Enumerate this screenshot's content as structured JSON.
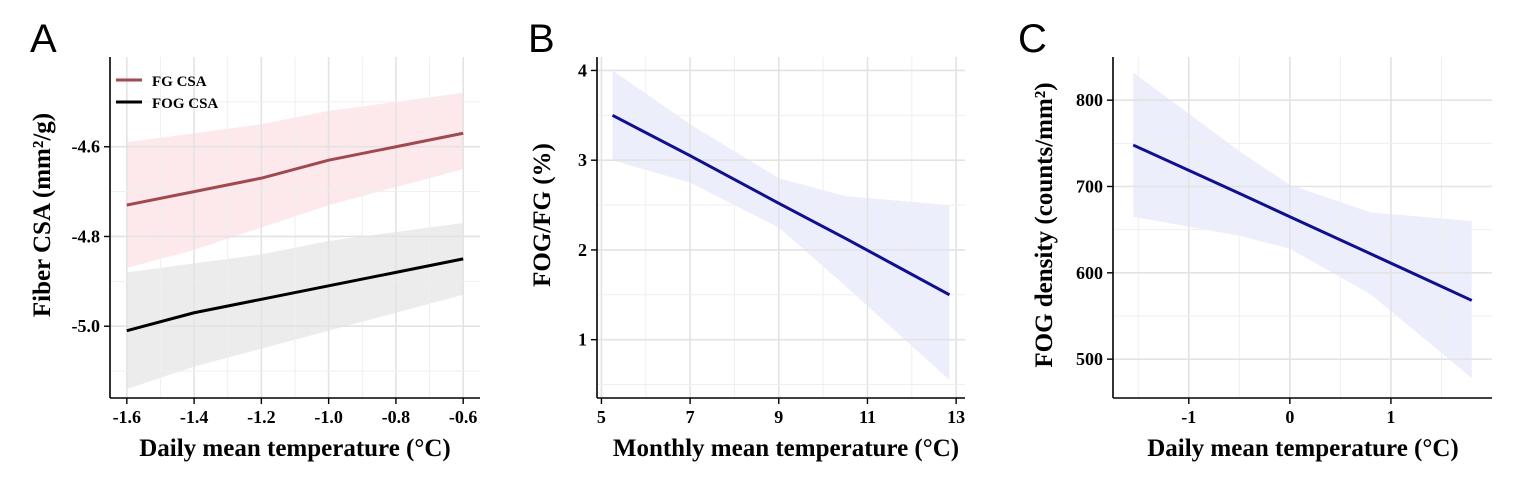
{
  "chart_data": [
    {
      "panel": "A",
      "type": "line",
      "xlabel": "Daily mean temperature (°C)",
      "ylabel": "Fiber CSA (mm²/g)",
      "xlim": [
        -1.65,
        -0.55
      ],
      "ylim": [
        -5.16,
        -4.4
      ],
      "xticks": [
        -1.6,
        -1.4,
        -1.2,
        -1.0,
        -0.8,
        -0.6
      ],
      "xtick_labels": [
        "-1.6",
        "-1.4",
        "-1.2",
        "-1.0",
        "-0.8",
        "-0.6"
      ],
      "yticks": [
        -5.0,
        -4.8,
        -4.6
      ],
      "ytick_labels": [
        "-5.0",
        "-4.8",
        "-4.6"
      ],
      "grid": true,
      "legend": "top-left",
      "series": [
        {
          "name": "FG CSA",
          "color": "#9e4a4f",
          "band_color": "#fde8ec",
          "x": [
            -1.6,
            -1.4,
            -1.2,
            -1.0,
            -0.8,
            -0.6
          ],
          "y": [
            -4.73,
            -4.7,
            -4.67,
            -4.63,
            -4.6,
            -4.57
          ],
          "lower": [
            -4.87,
            -4.83,
            -4.78,
            -4.73,
            -4.69,
            -4.65
          ],
          "upper": [
            -4.59,
            -4.57,
            -4.55,
            -4.52,
            -4.5,
            -4.48
          ]
        },
        {
          "name": "FOG CSA",
          "color": "#000000",
          "band_color": "#ececec",
          "x": [
            -1.6,
            -1.4,
            -1.2,
            -1.0,
            -0.8,
            -0.6
          ],
          "y": [
            -5.01,
            -4.97,
            -4.94,
            -4.91,
            -4.88,
            -4.85
          ],
          "lower": [
            -5.14,
            -5.09,
            -5.05,
            -5.01,
            -4.97,
            -4.93
          ],
          "upper": [
            -4.88,
            -4.86,
            -4.84,
            -4.81,
            -4.79,
            -4.77
          ]
        }
      ]
    },
    {
      "panel": "B",
      "type": "line",
      "xlabel": "Monthly mean temperature (°C)",
      "ylabel": "FOG/FG (%)",
      "xlim": [
        4.9,
        13.2
      ],
      "ylim": [
        0.35,
        4.15
      ],
      "xticks": [
        5,
        7,
        9,
        11,
        13
      ],
      "xtick_labels": [
        "5",
        "7",
        "9",
        "11",
        "13"
      ],
      "yticks": [
        1,
        2,
        3,
        4
      ],
      "ytick_labels": [
        "1",
        "2",
        "3",
        "4"
      ],
      "grid": true,
      "series": [
        {
          "color": "#10108f",
          "band_color": "#edeefc",
          "x": [
            5.25,
            7,
            9,
            10.5,
            12.85
          ],
          "y": [
            3.5,
            3.05,
            2.52,
            2.13,
            1.5
          ],
          "lower": [
            3.0,
            2.75,
            2.25,
            1.6,
            0.55
          ],
          "upper": [
            4.0,
            3.4,
            2.8,
            2.6,
            2.5
          ]
        }
      ]
    },
    {
      "panel": "C",
      "type": "line",
      "xlabel": "Daily mean temperature (°C)",
      "ylabel": "FOG density (counts/mm²)",
      "xlim": [
        -1.75,
        2.0
      ],
      "ylim": [
        455,
        850
      ],
      "xticks": [
        -1,
        0,
        1
      ],
      "xtick_labels": [
        "-1",
        "0",
        "1"
      ],
      "yticks": [
        500,
        600,
        700,
        800
      ],
      "ytick_labels": [
        "500",
        "600",
        "700",
        "800"
      ],
      "grid": true,
      "series": [
        {
          "color": "#10108f",
          "band_color": "#edeefc",
          "x": [
            -1.55,
            -0.5,
            0,
            0.8,
            1.8
          ],
          "y": [
            748,
            692,
            665,
            622,
            568
          ],
          "lower": [
            665,
            643,
            628,
            575,
            478
          ],
          "upper": [
            832,
            741,
            702,
            670,
            660
          ]
        }
      ]
    }
  ]
}
